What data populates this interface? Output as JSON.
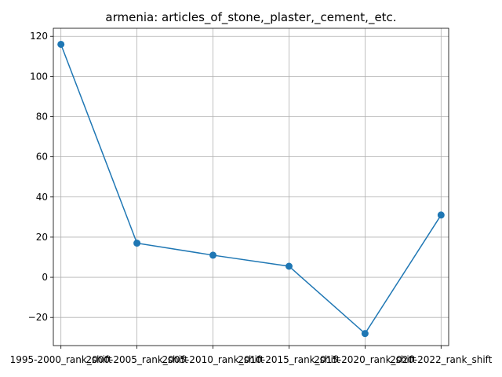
{
  "chart_data": {
    "type": "line",
    "title": "armenia: articles_of_stone,_plaster,_cement,_etc.",
    "xlabel": "",
    "ylabel": "",
    "categories": [
      "1995-2000_rank_shift",
      "2000-2005_rank_shift",
      "2005-2010_rank_shift",
      "2010-2015_rank_shift",
      "2015-2020_rank_shift",
      "2020-2022_rank_shift"
    ],
    "series": [
      {
        "values": [
          116,
          17,
          11,
          5.5,
          -28,
          31
        ]
      }
    ],
    "ylim": [
      -34,
      124
    ],
    "yticks": [
      -20,
      0,
      20,
      40,
      60,
      80,
      100,
      120
    ],
    "ytick_labels": [
      "−20",
      "0",
      "20",
      "40",
      "60",
      "80",
      "100",
      "120"
    ],
    "grid": true,
    "color": "#1f77b4"
  }
}
